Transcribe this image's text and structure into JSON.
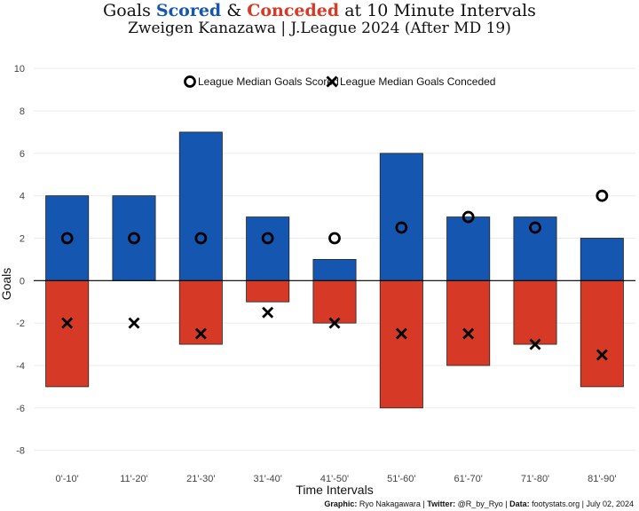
{
  "title": {
    "prefix": "Goals ",
    "scored": "Scored",
    "amp": " & ",
    "conceded": "Conceded",
    "suffix": " at 10 Minute Intervals"
  },
  "subtitle": "Zweigen Kanazawa | J.League 2024 (After MD 19)",
  "caption": {
    "graphic_label": "Graphic:",
    "graphic_value": " Ryo Nakagawara | ",
    "twitter_label": "Twitter:",
    "twitter_value": " @R_by_Ryo | ",
    "data_label": "Data:",
    "data_value": " footystats.org | July 02, 2024"
  },
  "colors": {
    "scored": "#1557b0",
    "conceded": "#d63a26",
    "marker": "#000000",
    "zero_line": "#000000",
    "grid": "#ebebeb"
  },
  "chart_data": {
    "type": "bar",
    "xlabel": "Time Intervals",
    "ylabel": "Goals",
    "ylim": [
      -8.6,
      10.3
    ],
    "yticks": [
      -8,
      -6,
      -4,
      -2,
      0,
      2,
      4,
      6,
      8,
      10
    ],
    "grid": true,
    "legend_position": "top-center",
    "categories": [
      "0'-10'",
      "11'-20'",
      "21'-30'",
      "31'-40'",
      "41'-50'",
      "51'-60'",
      "61'-70'",
      "71'-80'",
      "81'-90'"
    ],
    "series": [
      {
        "name": "Goals Scored",
        "kind": "bar",
        "color": "#1557b0",
        "values": [
          4,
          4,
          7,
          3,
          1,
          6,
          3,
          3,
          2
        ]
      },
      {
        "name": "Goals Conceded",
        "kind": "bar",
        "color": "#d63a26",
        "values": [
          -5,
          0,
          -3,
          -1,
          -2,
          -6,
          -4,
          -3,
          -5
        ]
      },
      {
        "name": "League Median Goals Scored",
        "kind": "marker",
        "marker": "circle",
        "values": [
          2,
          2,
          2,
          2,
          2,
          2.5,
          3,
          2.5,
          4
        ]
      },
      {
        "name": "League Median Goals Conceded",
        "kind": "marker",
        "marker": "x",
        "values": [
          -2,
          -2,
          -2.5,
          -1.5,
          -2,
          -2.5,
          -2.5,
          -3,
          -3.5
        ]
      }
    ]
  }
}
